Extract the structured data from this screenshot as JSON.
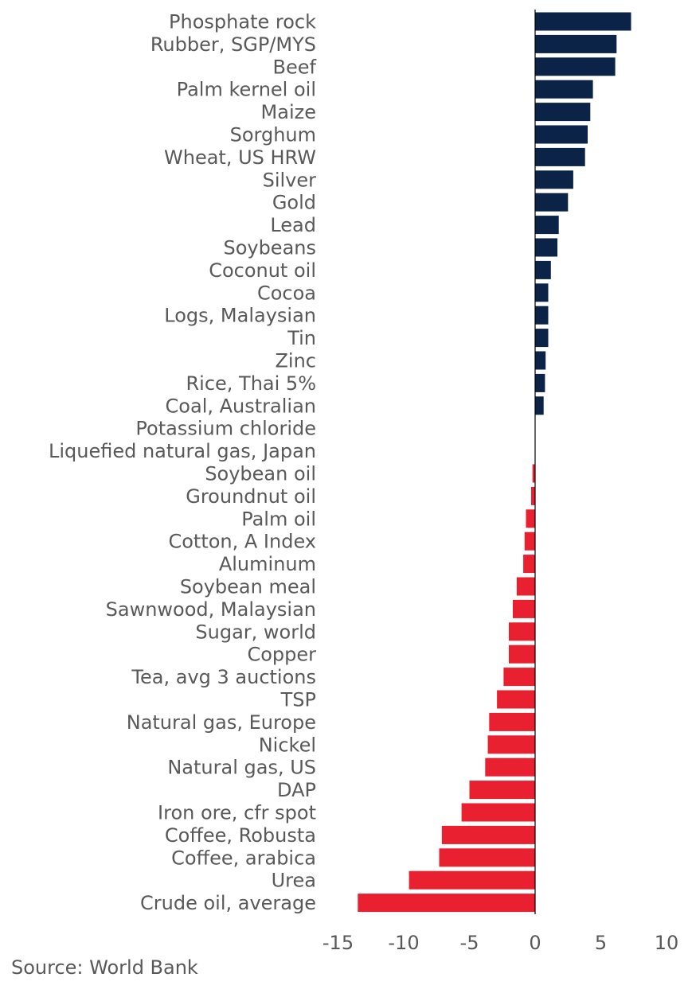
{
  "chart_data": {
    "type": "bar",
    "orientation": "horizontal",
    "title": "",
    "xlabel": "",
    "ylabel": "",
    "xlim": [
      -15,
      10
    ],
    "xticks": [
      -15,
      -10,
      -5,
      0,
      5,
      10
    ],
    "grid": false,
    "legend": "none",
    "colors": {
      "positive": "#0b2347",
      "negative": "#e8202f",
      "axis": "#000000",
      "text": "#595959"
    },
    "categories": [
      "Phosphate rock",
      "Rubber, SGP/MYS",
      "Beef",
      "Palm kernel oil",
      "Maize",
      "Sorghum",
      "Wheat, US HRW",
      "Silver",
      "Gold",
      "Lead",
      "Soybeans",
      "Coconut oil",
      "Cocoa",
      "Logs, Malaysian",
      "Tin",
      "Zinc",
      "Rice, Thai 5%",
      "Coal, Australian",
      "Potassium chloride",
      "Liquefied natural gas, Japan",
      "Soybean oil",
      "Groundnut oil",
      "Palm oil",
      "Cotton, A Index",
      "Aluminum",
      "Soybean meal",
      "Sawnwood, Malaysian",
      "Sugar, world",
      "Copper",
      "Tea, avg 3 auctions",
      "TSP",
      "Natural gas, Europe",
      "Nickel",
      "Natural gas, US",
      "DAP",
      "Iron ore, cfr spot",
      "Coffee, Robusta",
      "Coffee, arabica",
      "Urea",
      "Crude oil, average"
    ],
    "values": [
      7.3,
      6.2,
      6.1,
      4.4,
      4.2,
      4.0,
      3.8,
      2.9,
      2.5,
      1.8,
      1.7,
      1.2,
      1.0,
      1.0,
      1.0,
      0.8,
      0.75,
      0.65,
      0.0,
      0.0,
      -0.2,
      -0.3,
      -0.7,
      -0.8,
      -0.9,
      -1.4,
      -1.7,
      -2.0,
      -2.0,
      -2.4,
      -2.9,
      -3.5,
      -3.6,
      -3.8,
      -5.0,
      -5.6,
      -7.1,
      -7.3,
      -9.6,
      -13.5
    ]
  },
  "footer": {
    "source": "Source: World Bank"
  }
}
